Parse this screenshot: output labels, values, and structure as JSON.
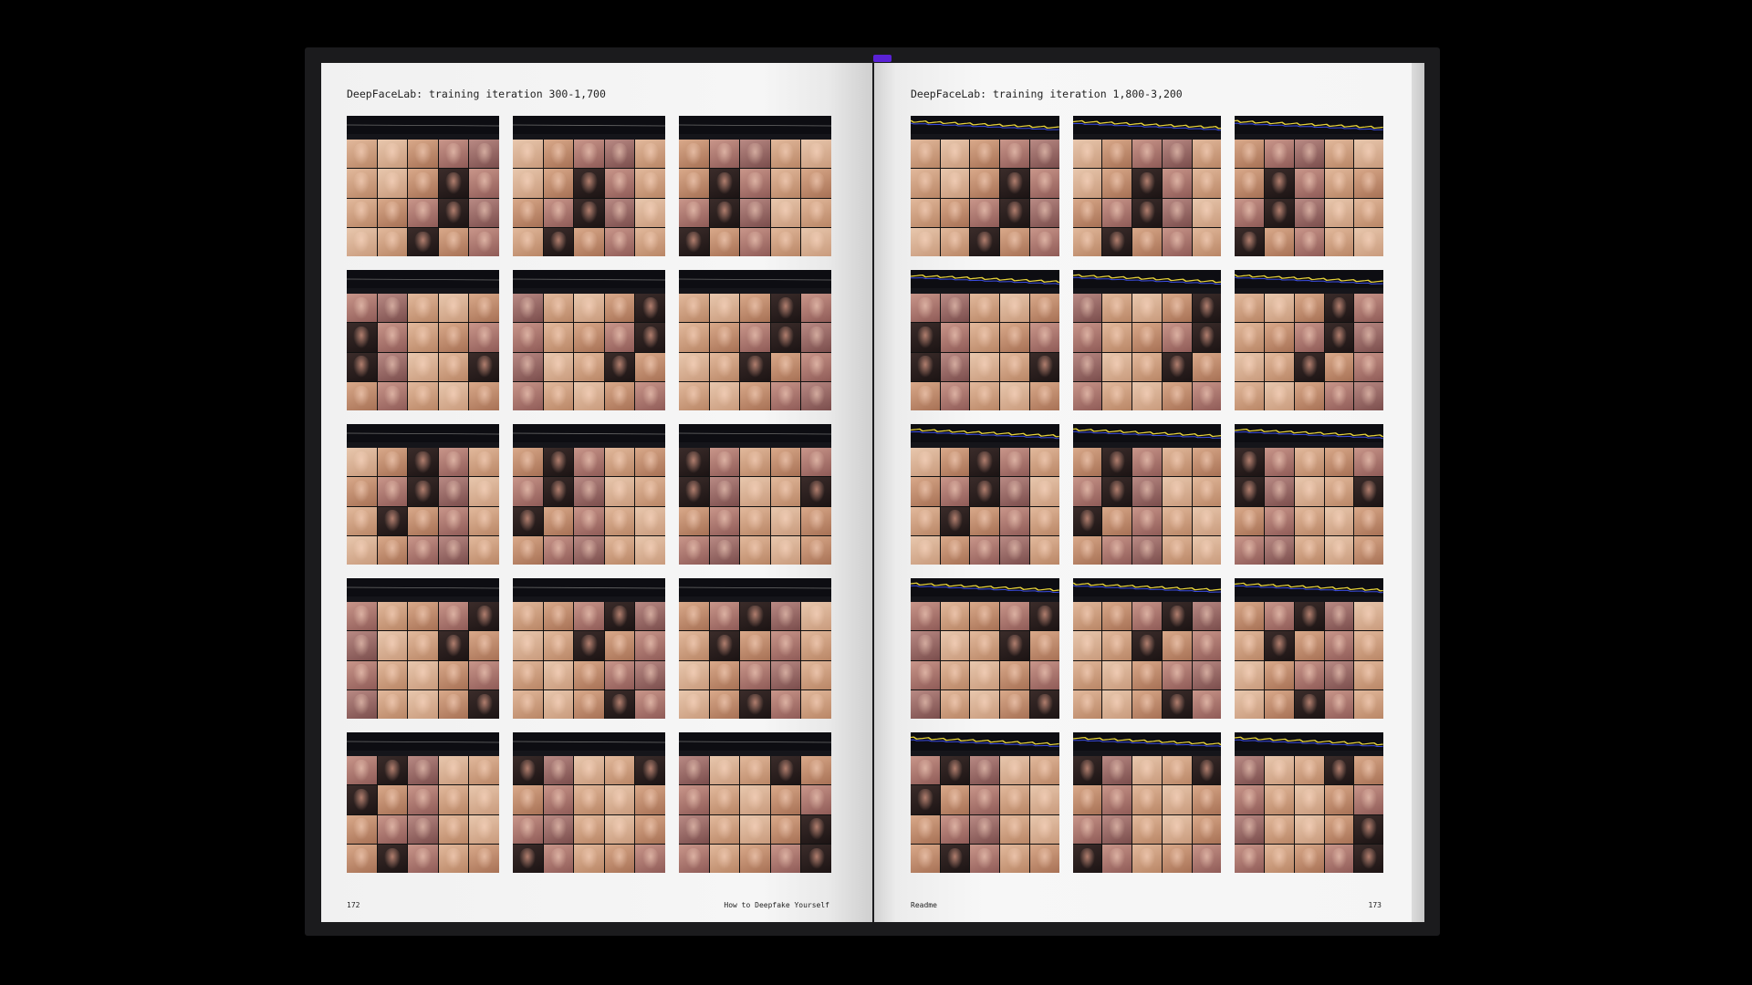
{
  "left_page": {
    "title": "DeepFaceLab: training iteration 300-1,700",
    "page_number": "172",
    "running_footer": "How to Deepfake Yourself",
    "thumbnail_count": 15
  },
  "right_page": {
    "title": "DeepFaceLab: training iteration 1,800-3,200",
    "running_footer": "Readme",
    "page_number": "173",
    "thumbnail_count": 15
  },
  "colors": {
    "background": "#000000",
    "cover": "#1b1b1d",
    "paper": "#f4f4f4",
    "bookmark_ribbon": "#5a22d6",
    "loss_graph_yellow": "#e6d23a",
    "loss_graph_blue": "#3a4be0"
  }
}
